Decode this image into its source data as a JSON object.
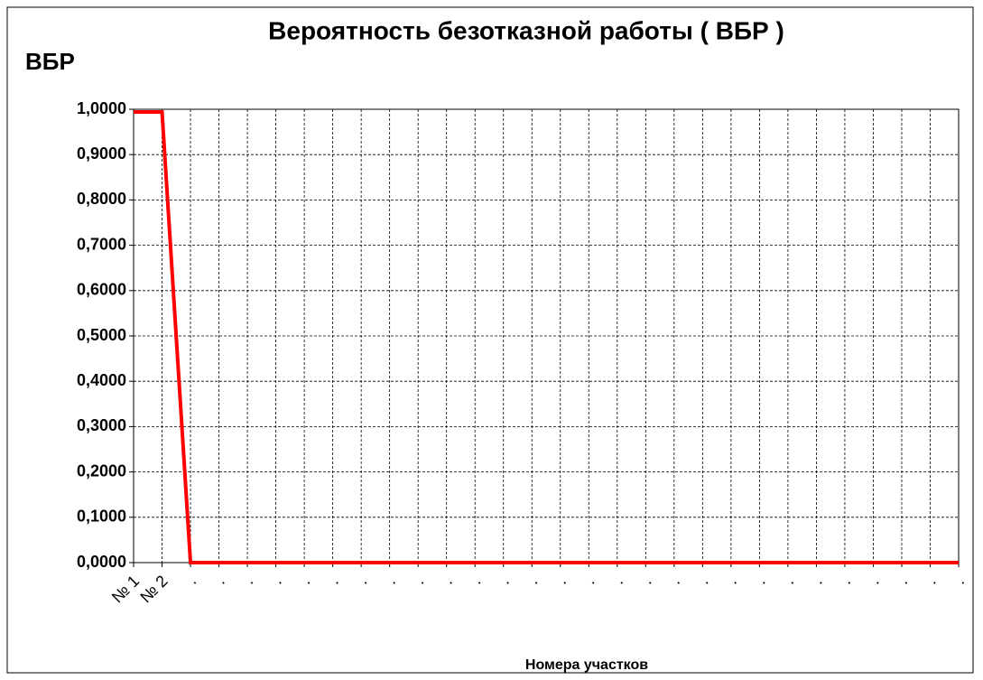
{
  "chart_data": {
    "type": "line",
    "title": "Вероятность безотказной работы ( ВБР )",
    "y_label": "ВБР",
    "x_label": "Номера участков",
    "categories": [
      "№ 1",
      "№ 2",
      ".",
      ".",
      ".",
      ".",
      ".",
      ".",
      ".",
      ".",
      ".",
      ".",
      ".",
      ".",
      ".",
      ".",
      ".",
      ".",
      ".",
      ".",
      ".",
      ".",
      ".",
      ".",
      ".",
      ".",
      ".",
      ".",
      ".",
      "."
    ],
    "series": [
      {
        "color": "#ff0000",
        "values": [
          0.994,
          0.994,
          0,
          0,
          0,
          0,
          0,
          0,
          0,
          0,
          0,
          0,
          0,
          0,
          0,
          0,
          0,
          0,
          0,
          0,
          0,
          0,
          0,
          0,
          0,
          0,
          0,
          0,
          0,
          0
        ]
      }
    ],
    "ylim": [
      0,
      1
    ],
    "yticks": [
      {
        "value": 0,
        "label": "0,0000"
      },
      {
        "value": 0.1,
        "label": "0,1000"
      },
      {
        "value": 0.2,
        "label": "0,2000"
      },
      {
        "value": 0.3,
        "label": "0,3000"
      },
      {
        "value": 0.4,
        "label": "0,4000"
      },
      {
        "value": 0.5,
        "label": "0,5000"
      },
      {
        "value": 0.6,
        "label": "0,6000"
      },
      {
        "value": 0.7,
        "label": "0,7000"
      },
      {
        "value": 0.8,
        "label": "0,8000"
      },
      {
        "value": 0.9,
        "label": "0,9000"
      },
      {
        "value": 1,
        "label": "1,0000"
      }
    ],
    "grid": true
  }
}
